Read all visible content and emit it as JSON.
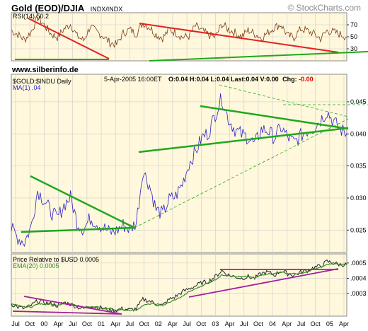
{
  "header": {
    "title": "Gold (EOD)/DJIA",
    "exchange": "INDX/INDX",
    "watermark": "© StockCharts.com",
    "site": "www.silberinfo.de",
    "date_line": "5-Apr-2005 16:00ET",
    "ohlc": "O:0.04 H:0.04 L:0.04 Last:0.04 V:0.00",
    "chg_label": "Chg:",
    "chg_value": "-0.00"
  },
  "colors": {
    "panel_bg": "#fff8dc",
    "price_line": "#2b1fcc",
    "rsi_line": "#7a3a14",
    "ema_line": "#3a8a2a",
    "trend_green": "#1ea81e",
    "trend_red": "#e52020",
    "trend_purple": "#a020a0",
    "grid": "#cccccc"
  },
  "chart_data": [
    {
      "type": "line",
      "title": "RSI(14) 50.2",
      "ylim": [
        10,
        90
      ],
      "yticks": [
        30,
        50,
        70
      ],
      "levels": [
        30,
        70
      ],
      "grid": true,
      "series": [
        {
          "name": "RSI(14)",
          "values": [
            60,
            54,
            45,
            58,
            82,
            70,
            55,
            49,
            63,
            71,
            51,
            44,
            67,
            58,
            51,
            40,
            37,
            56,
            62,
            55,
            73,
            66,
            54,
            48,
            62,
            57,
            49,
            51,
            68,
            60,
            53,
            49,
            71,
            62,
            57,
            50,
            61,
            55,
            48,
            57,
            66,
            70,
            52,
            49,
            63,
            60,
            55,
            47,
            60,
            58,
            54,
            50
          ]
        }
      ]
    },
    {
      "type": "line",
      "title": "$GOLD:$INDU Daily",
      "ylim": [
        0.0215,
        0.0493
      ],
      "yticks": [
        0.025,
        0.03,
        0.035,
        0.04,
        0.045
      ],
      "ytick_labels": [
        "0.025",
        "0.030",
        "0.035",
        "0.040",
        "0.045"
      ],
      "xlabels": [
        "Jul",
        "Oct",
        "00",
        "Apr",
        "Jul",
        "Oct",
        "01",
        "Apr",
        "Jul",
        "Oct",
        "02",
        "Apr",
        "Jul",
        "Oct",
        "03",
        "Apr",
        "Jul",
        "Oct",
        "04",
        "Apr",
        "Jul",
        "Oct",
        "05",
        "Apr"
      ],
      "grid": true,
      "series": [
        {
          "name": "MA(1)",
          "label": "MA(1) .04",
          "values": [
            0.0252,
            0.0238,
            0.0231,
            0.0255,
            0.0312,
            0.0296,
            0.0279,
            0.0268,
            0.0289,
            0.0301,
            0.0262,
            0.0251,
            0.0269,
            0.0261,
            0.0254,
            0.0246,
            0.0249,
            0.0258,
            0.0251,
            0.0262,
            0.0343,
            0.032,
            0.0282,
            0.0275,
            0.0297,
            0.0303,
            0.0322,
            0.0353,
            0.0372,
            0.0395,
            0.0402,
            0.0431,
            0.0456,
            0.0423,
            0.0407,
            0.0399,
            0.0395,
            0.0383,
            0.0407,
            0.0405,
            0.0394,
            0.041,
            0.0395,
            0.0386,
            0.0397,
            0.0405,
            0.041,
            0.0422,
            0.0435,
            0.0419,
            0.0407,
            0.0401
          ]
        }
      ]
    },
    {
      "type": "line",
      "title": "Price Relative to $USD 0.0005",
      "ylim": [
        0.00015,
        0.00056
      ],
      "yticks": [
        0.0003,
        0.0004,
        0.0005
      ],
      "ytick_labels": [
        ".0003",
        ".0004",
        ".0005"
      ],
      "grid": true,
      "series": [
        {
          "name": "Price Relative to $USD",
          "values": [
            0.00023,
            0.00021,
            0.0002,
            0.00022,
            0.00025,
            0.00024,
            0.00023,
            0.00022,
            0.00024,
            0.00023,
            0.00021,
            0.0002,
            0.00022,
            0.00021,
            0.0002,
            0.00019,
            0.00019,
            0.0002,
            0.00019,
            0.0002,
            0.00026,
            0.00025,
            0.00023,
            0.00022,
            0.00026,
            0.00028,
            0.00031,
            0.00033,
            0.00035,
            0.00037,
            0.00038,
            0.00041,
            0.00045,
            0.00042,
            0.00041,
            0.0004,
            0.00041,
            0.0004,
            0.00043,
            0.00044,
            0.00042,
            0.00045,
            0.00043,
            0.00042,
            0.00044,
            0.00045,
            0.00047,
            0.00048,
            0.00051,
            0.0005,
            0.00049,
            0.00049
          ]
        },
        {
          "name": "EMA(20)",
          "label": "EMA(20) 0.0005",
          "values": [
            0.00023,
            0.00022,
            0.00021,
            0.00021,
            0.00023,
            0.00023,
            0.00023,
            0.00022,
            0.00023,
            0.00023,
            0.00022,
            0.00021,
            0.00021,
            0.00021,
            0.0002,
            0.0002,
            0.00019,
            0.00019,
            0.00019,
            0.00019,
            0.00022,
            0.00023,
            0.00023,
            0.00022,
            0.00024,
            0.00026,
            0.00028,
            0.00031,
            0.00033,
            0.00035,
            0.00037,
            0.00039,
            0.00042,
            0.00042,
            0.00041,
            0.00041,
            0.00041,
            0.0004,
            0.00042,
            0.00043,
            0.00043,
            0.00044,
            0.00043,
            0.00043,
            0.00043,
            0.00044,
            0.00046,
            0.00047,
            0.00049,
            0.0005,
            0.00049,
            0.00049
          ]
        }
      ]
    }
  ]
}
